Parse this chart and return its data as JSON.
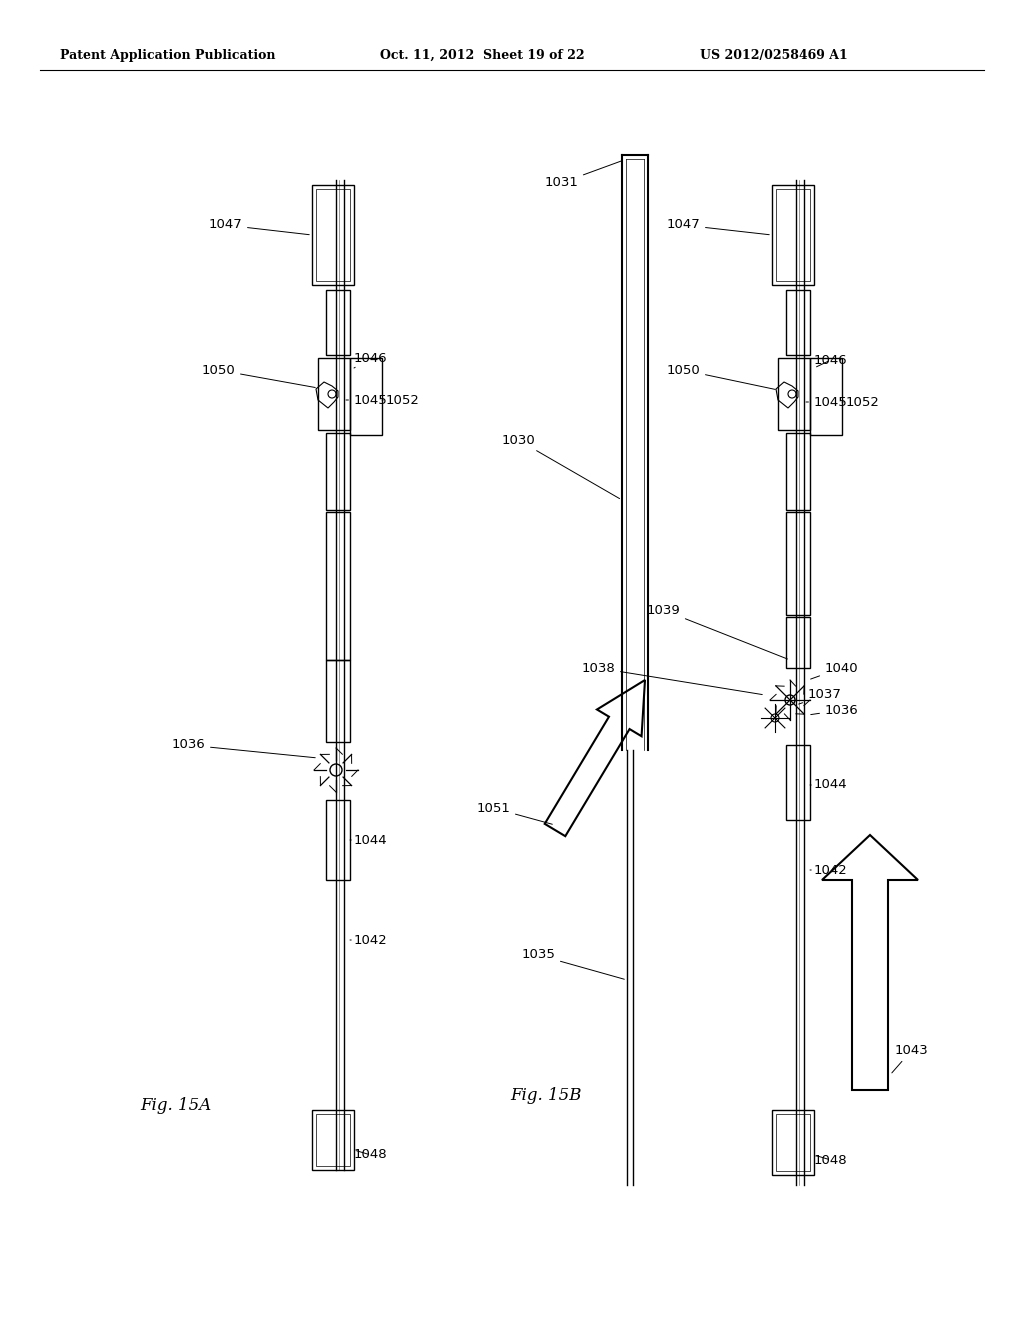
{
  "background_color": "#ffffff",
  "header_left": "Patent Application Publication",
  "header_center": "Oct. 11, 2012  Sheet 19 of 22",
  "header_right": "US 2012/0258469 A1",
  "fig_a_label": "Fig. 15A",
  "fig_b_label": "Fig. 15B"
}
